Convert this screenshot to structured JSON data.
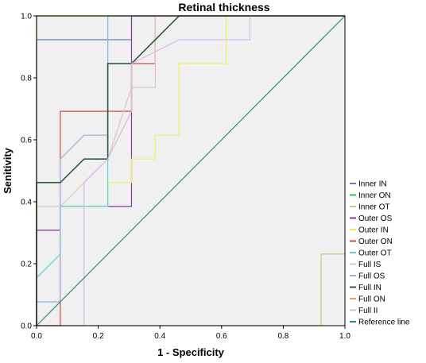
{
  "chart_data": {
    "type": "line",
    "title": "Retinal thickness",
    "xlabel": "1 - Specificity",
    "ylabel": "Senitivity",
    "xlim": [
      0,
      1
    ],
    "ylim": [
      0,
      1
    ],
    "x_ticks": [
      "0.0",
      "0.2",
      "0.4",
      "0.6",
      "0.8",
      "1.0"
    ],
    "y_ticks": [
      "0.0",
      "0.2",
      "0.4",
      "0.6",
      "0.8",
      "1.0"
    ],
    "grid": false,
    "legend_position": "right",
    "plot_background": "#f0f0f0",
    "series": [
      {
        "name": "Inner IN",
        "color": "#6c7fb4",
        "points": [
          [
            0,
            0
          ],
          [
            0,
            0.923
          ],
          [
            0.308,
            0.923
          ],
          [
            0.308,
            1
          ],
          [
            1,
            1
          ]
        ]
      },
      {
        "name": "Inner ON",
        "color": "#3fbf4a",
        "points": [
          [
            0,
            0
          ],
          [
            0,
            1
          ],
          [
            1,
            1
          ]
        ]
      },
      {
        "name": "Inner OT",
        "color": "#c8c48c",
        "points": [
          [
            0,
            0
          ],
          [
            0.923,
            0
          ],
          [
            0.923,
            0.231
          ],
          [
            1,
            0.231
          ]
        ]
      },
      {
        "name": "Outer OS",
        "color": "#7f3f8c",
        "points": [
          [
            0,
            0
          ],
          [
            0,
            0.308
          ],
          [
            0.077,
            0.308
          ],
          [
            0.077,
            0.385
          ],
          [
            0.308,
            0.385
          ],
          [
            0.308,
            1
          ],
          [
            1,
            1
          ]
        ]
      },
      {
        "name": "Outer IN",
        "color": "#f2ef5c",
        "points": [
          [
            0,
            0
          ],
          [
            0.077,
            0
          ],
          [
            0.077,
            0.385
          ],
          [
            0.231,
            0.385
          ],
          [
            0.231,
            0.462
          ],
          [
            0.308,
            0.462
          ],
          [
            0.308,
            0.538
          ],
          [
            0.385,
            0.538
          ],
          [
            0.385,
            0.615
          ],
          [
            0.462,
            0.615
          ],
          [
            0.462,
            0.846
          ],
          [
            0.615,
            0.846
          ],
          [
            0.615,
            1
          ],
          [
            1,
            1
          ]
        ]
      },
      {
        "name": "Outer ON",
        "color": "#d9464a",
        "points": [
          [
            0,
            0
          ],
          [
            0.077,
            0
          ],
          [
            0.077,
            0.692
          ],
          [
            0.308,
            0.692
          ],
          [
            0.308,
            0.846
          ],
          [
            0.385,
            0.846
          ],
          [
            0.385,
            1
          ],
          [
            1,
            1
          ]
        ]
      },
      {
        "name": "Outer OT",
        "color": "#5cd3d3",
        "points": [
          [
            0,
            0
          ],
          [
            0,
            0.154
          ],
          [
            0.077,
            0.231
          ],
          [
            0.077,
            0.385
          ],
          [
            0.231,
            0.385
          ],
          [
            0.231,
            1
          ],
          [
            0.308,
            1
          ],
          [
            0.308,
            1
          ],
          [
            1,
            1
          ]
        ]
      },
      {
        "name": "Full IS",
        "color": "#d9c8c0",
        "points": [
          [
            0,
            0
          ],
          [
            0,
            0.385
          ],
          [
            0.077,
            0.385
          ],
          [
            0.154,
            0.462
          ],
          [
            0.231,
            0.538
          ],
          [
            0.308,
            0.769
          ],
          [
            0.385,
            0.769
          ],
          [
            0.385,
            1
          ],
          [
            1,
            1
          ]
        ]
      },
      {
        "name": "Full OS",
        "color": "#8fb3d9",
        "points": [
          [
            0,
            0
          ],
          [
            0,
            0.077
          ],
          [
            0.077,
            0.077
          ],
          [
            0.077,
            0.538
          ],
          [
            0.154,
            0.615
          ],
          [
            0.231,
            0.615
          ],
          [
            0.231,
            1
          ],
          [
            1,
            1
          ]
        ]
      },
      {
        "name": "Full IN",
        "color": "#2e5e3f",
        "points": [
          [
            0,
            0
          ],
          [
            0,
            0.462
          ],
          [
            0.077,
            0.462
          ],
          [
            0.077,
            0.462
          ],
          [
            0.154,
            0.538
          ],
          [
            0.231,
            0.538
          ],
          [
            0.231,
            0.846
          ],
          [
            0.308,
            0.846
          ],
          [
            0.385,
            0.923
          ],
          [
            0.462,
            1
          ],
          [
            1,
            1
          ]
        ]
      },
      {
        "name": "Full ON",
        "color": "#f2a44c",
        "points": [
          [
            0,
            0
          ],
          [
            0,
            1
          ],
          [
            1,
            1
          ]
        ]
      },
      {
        "name": "Full II",
        "color": "#d9b8e8",
        "points": [
          [
            0,
            0
          ],
          [
            0.154,
            0
          ],
          [
            0.154,
            0.462
          ],
          [
            0.231,
            0.538
          ],
          [
            0.308,
            0.692
          ],
          [
            0.308,
            0.846
          ],
          [
            0.462,
            0.923
          ],
          [
            0.692,
            0.923
          ],
          [
            0.692,
            1
          ],
          [
            1,
            1
          ]
        ]
      },
      {
        "name": "Reference line",
        "color": "#2b8a8a",
        "points": [
          [
            0,
            0
          ],
          [
            1,
            1
          ]
        ]
      }
    ]
  }
}
